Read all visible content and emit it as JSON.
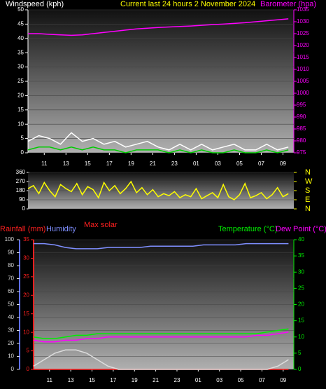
{
  "chart_data": [
    {
      "type": "line",
      "title": "Current last 24 hours 2 November 2024",
      "y_label": "Windspeed (kph)",
      "y2_label": "Barometer (hpa)",
      "x": [
        0,
        1,
        2,
        3,
        4,
        5,
        6,
        7,
        8,
        9,
        10,
        11,
        12,
        13,
        14,
        15,
        16,
        17,
        18,
        19,
        20,
        21,
        22,
        23,
        24
      ],
      "xlim": [
        0,
        24.5
      ],
      "xticks": [
        {
          "value": 1.5,
          "label": "11"
        },
        {
          "value": 3.5,
          "label": "13"
        },
        {
          "value": 5.5,
          "label": "15"
        },
        {
          "value": 7.5,
          "label": "17"
        },
        {
          "value": 9.5,
          "label": "19"
        },
        {
          "value": 11.5,
          "label": "21"
        },
        {
          "value": 13.5,
          "label": "23"
        },
        {
          "value": 15.5,
          "label": "01"
        },
        {
          "value": 17.5,
          "label": "03"
        },
        {
          "value": 19.5,
          "label": "05"
        },
        {
          "value": 21.5,
          "label": "07"
        },
        {
          "value": 23.5,
          "label": "09"
        }
      ],
      "ylim": [
        0,
        50
      ],
      "yticks": [
        0,
        5,
        10,
        15,
        20,
        25,
        30,
        35,
        40,
        45,
        50
      ],
      "y2lim": [
        975,
        1035
      ],
      "y2ticks": [
        975,
        980,
        985,
        990,
        995,
        1000,
        1005,
        1010,
        1015,
        1020,
        1025,
        1030,
        1035
      ],
      "grid": true,
      "series": [
        {
          "color": "#ffffff",
          "values": [
            4,
            6,
            5,
            3,
            7,
            4,
            5,
            3,
            4,
            2,
            3,
            4,
            2,
            1,
            3,
            1,
            3,
            1,
            2,
            3,
            1,
            1,
            3,
            1,
            2
          ]
        },
        {
          "color": "#00cc00",
          "values": [
            1,
            2,
            2,
            1,
            2,
            1,
            2,
            1,
            1,
            0,
            1,
            1,
            1,
            0,
            1,
            0,
            1,
            0,
            0,
            1,
            0,
            0,
            1,
            0,
            1
          ]
        },
        {
          "color": "#ff00ff",
          "axis": "y2",
          "values": [
            1025,
            1025,
            1024.7,
            1024.5,
            1024.3,
            1024.5,
            1025,
            1025.5,
            1026,
            1026.5,
            1027,
            1027.3,
            1027.6,
            1027.8,
            1028,
            1028.2,
            1028.5,
            1028.8,
            1029,
            1029.3,
            1029.6,
            1030,
            1030.4,
            1030.8,
            1031.2
          ]
        }
      ]
    },
    {
      "type": "line",
      "x": [
        0,
        0.5,
        1,
        1.5,
        2,
        2.5,
        3,
        3.5,
        4,
        4.5,
        5,
        5.5,
        6,
        6.5,
        7,
        7.5,
        8,
        8.5,
        9,
        9.5,
        10,
        10.5,
        11,
        11.5,
        12,
        12.5,
        13,
        13.5,
        14,
        14.5,
        15,
        15.5,
        16,
        16.5,
        17,
        17.5,
        18,
        18.5,
        19,
        19.5,
        20,
        20.5,
        21,
        21.5,
        22,
        22.5,
        23,
        23.5,
        24
      ],
      "xlim": [
        0,
        24.5
      ],
      "ylim": [
        0,
        360
      ],
      "yticks": [
        0,
        90,
        180,
        270,
        360
      ],
      "y2lim": [
        0,
        360
      ],
      "y2ticks": [
        {
          "value": 360,
          "label": "N"
        },
        {
          "value": 270,
          "label": "W"
        },
        {
          "value": 180,
          "label": "S"
        },
        {
          "value": 90,
          "label": "E"
        },
        {
          "value": 0,
          "label": "N"
        }
      ],
      "grid": true,
      "series": [
        {
          "color": "#ffff00",
          "values": [
            200,
            230,
            150,
            260,
            180,
            120,
            240,
            200,
            170,
            250,
            140,
            220,
            190,
            110,
            260,
            180,
            230,
            150,
            200,
            270,
            160,
            210,
            140,
            190,
            120,
            150,
            130,
            170,
            110,
            140,
            120,
            200,
            100,
            130,
            160,
            110,
            240,
            120,
            90,
            140,
            250,
            110,
            130,
            160,
            100,
            140,
            210,
            120,
            150
          ]
        }
      ]
    },
    {
      "type": "line",
      "y_label": "Humidity",
      "y3_label": "Rainfall (mm)",
      "y2_label": "Temperature (°C)",
      "x": [
        0,
        1,
        2,
        3,
        4,
        5,
        6,
        7,
        8,
        9,
        10,
        11,
        12,
        13,
        14,
        15,
        16,
        17,
        18,
        19,
        20,
        21,
        22,
        23,
        24
      ],
      "xlim": [
        0,
        24.5
      ],
      "xticks": [
        {
          "value": 1.5,
          "label": "11"
        },
        {
          "value": 3.5,
          "label": "13"
        },
        {
          "value": 5.5,
          "label": "15"
        },
        {
          "value": 7.5,
          "label": "17"
        },
        {
          "value": 9.5,
          "label": "19"
        },
        {
          "value": 11.5,
          "label": "21"
        },
        {
          "value": 13.5,
          "label": "23"
        },
        {
          "value": 15.5,
          "label": "01"
        },
        {
          "value": 17.5,
          "label": "03"
        },
        {
          "value": 19.5,
          "label": "05"
        },
        {
          "value": 21.5,
          "label": "07"
        },
        {
          "value": 23.5,
          "label": "09"
        }
      ],
      "ylim": [
        0,
        100
      ],
      "yticks": [
        0,
        10,
        20,
        30,
        40,
        50,
        60,
        70,
        80,
        90,
        100
      ],
      "y3lim": [
        0,
        35
      ],
      "y3ticks": [
        0,
        5,
        10,
        15,
        20,
        25,
        30,
        35
      ],
      "y2lim": [
        0,
        40
      ],
      "y2ticks": [
        0,
        5,
        10,
        15,
        20,
        25,
        30,
        35,
        40
      ],
      "grid": true,
      "series": [
        {
          "color": "#ff2020",
          "axis": "y3",
          "values": [
            0,
            0,
            0,
            0,
            0,
            0,
            0,
            0,
            0,
            0,
            0,
            0,
            0,
            0,
            0,
            0,
            0,
            0,
            0,
            0,
            0,
            0,
            0,
            0,
            0
          ]
        },
        {
          "color": "#7f8fff",
          "values": [
            97,
            97,
            96,
            94,
            93,
            93,
            93,
            94,
            94,
            94,
            94,
            95,
            95,
            95,
            95,
            95,
            96,
            96,
            96,
            96,
            97,
            97,
            97,
            97,
            97
          ]
        },
        {
          "color": "#00ee00",
          "axis": "y2",
          "values": [
            10,
            9.5,
            9.5,
            10,
            10.5,
            10.5,
            11,
            11,
            11,
            11,
            11,
            11,
            11,
            11,
            11,
            11,
            11,
            11,
            11,
            11,
            11,
            11,
            11.5,
            12,
            12.5
          ]
        },
        {
          "name": "Dew Point (°C)",
          "color": "#ff00ff",
          "axis": "y2",
          "values": [
            9,
            8.5,
            8.5,
            9,
            9,
            9.5,
            9.5,
            10,
            10,
            10,
            10,
            10,
            10,
            10,
            10,
            10,
            10,
            10,
            10,
            10,
            10,
            10.5,
            10.5,
            11,
            11.5
          ]
        },
        {
          "name": "Max solar",
          "color": "#dddddd",
          "axis": "y2",
          "values": [
            1,
            3,
            5,
            6,
            6,
            5,
            3,
            1,
            0,
            0,
            0,
            0,
            0,
            0,
            0,
            0,
            0,
            0,
            0,
            0,
            0,
            0,
            0,
            1,
            3
          ]
        }
      ]
    }
  ]
}
